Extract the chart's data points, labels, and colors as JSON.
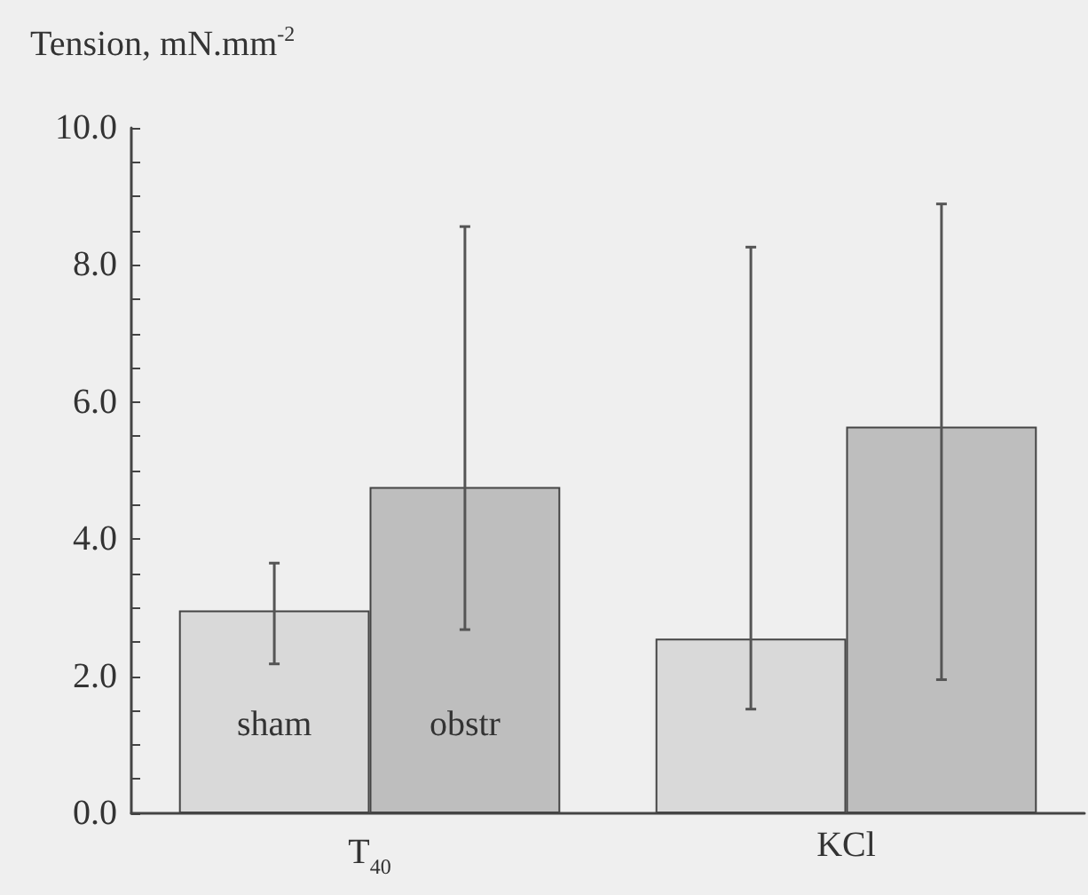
{
  "chart_data": {
    "type": "bar",
    "ylabel": "Tension, mN.mm$^{-2}$",
    "categories": [
      "T$_{40}$",
      "KCl"
    ],
    "series": [
      {
        "name": "sham",
        "color": "#d9d9d9",
        "values": [
          2.96,
          2.55
        ],
        "errors": [
          [
            2.18,
            3.65
          ],
          [
            1.52,
            8.26
          ]
        ]
      },
      {
        "name": "obstr",
        "color": "#bebebe",
        "values": [
          4.76,
          5.64
        ],
        "errors": [
          [
            2.68,
            8.56
          ],
          [
            1.95,
            8.89
          ]
        ]
      }
    ],
    "ylim": [
      0,
      10
    ],
    "yticks": [
      {
        "value": 0,
        "label": "0.0"
      },
      {
        "value": 0.5,
        "label": null
      },
      {
        "value": 1,
        "label": null
      },
      {
        "value": 1.5,
        "label": null
      },
      {
        "value": 2,
        "label": "2.0"
      },
      {
        "value": 2.5,
        "label": null
      },
      {
        "value": 3,
        "label": null
      },
      {
        "value": 3.5,
        "label": null
      },
      {
        "value": 4,
        "label": "4.0"
      },
      {
        "value": 4.5,
        "label": null
      },
      {
        "value": 5,
        "label": null
      },
      {
        "value": 5.5,
        "label": null
      },
      {
        "value": 6,
        "label": "6.0"
      },
      {
        "value": 6.5,
        "label": null
      },
      {
        "value": 7,
        "label": null
      },
      {
        "value": 7.5,
        "label": null
      },
      {
        "value": 8,
        "label": "8.0"
      },
      {
        "value": 8.5,
        "label": null
      },
      {
        "value": 9,
        "label": null
      },
      {
        "value": 9.5,
        "label": null
      },
      {
        "value": 10,
        "label": "10.0"
      }
    ],
    "grid": false,
    "legend": false
  }
}
